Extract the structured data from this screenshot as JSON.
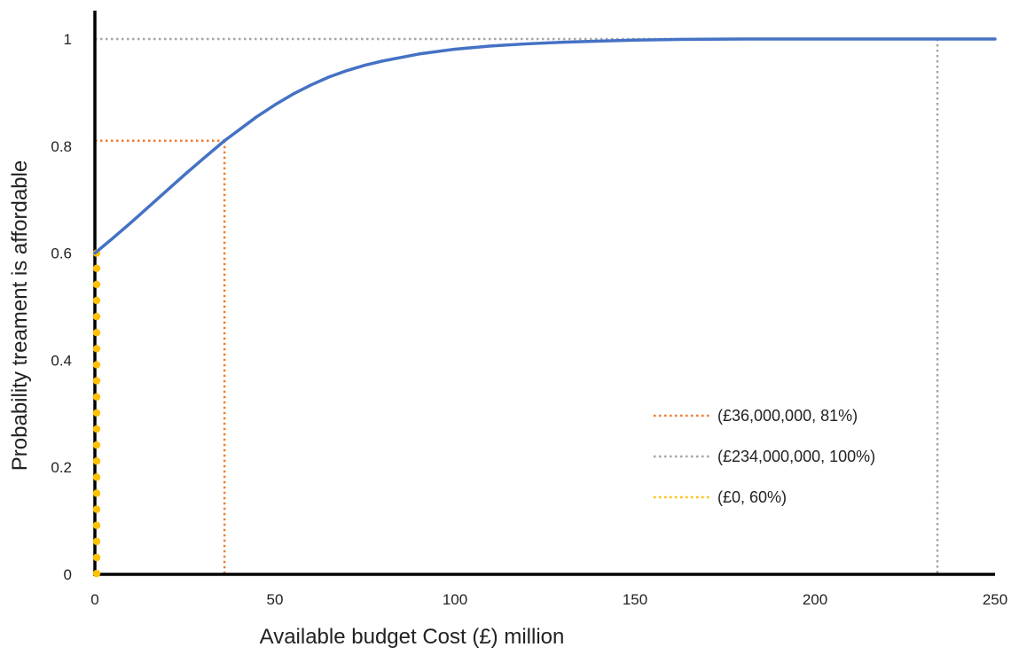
{
  "chart_data": {
    "type": "line",
    "title": "",
    "xlabel": "Available  budget Cost (£) million",
    "ylabel": "Probability treament is affordable",
    "xlim": [
      0,
      250
    ],
    "ylim": [
      0,
      1
    ],
    "x_ticks": [
      0,
      50,
      100,
      150,
      200,
      250
    ],
    "y_ticks": [
      {
        "value": 0,
        "label": "0"
      },
      {
        "value": 0.2,
        "label": "0.2"
      },
      {
        "value": 0.4,
        "label": "0.4"
      },
      {
        "value": 0.6,
        "label": "0.6"
      },
      {
        "value": 0.8,
        "label": "0.8"
      },
      {
        "value": 1,
        "label": "1"
      }
    ],
    "grid": false,
    "legend_position": "right",
    "colors": {
      "curve": "#4472C4",
      "orange": "#ED7D31",
      "gray": "#A5A5A5",
      "yellow": "#FFC000",
      "axis": "#000000"
    },
    "series": [
      {
        "x": [
          0,
          5,
          10,
          15,
          20,
          25,
          30,
          36,
          40,
          45,
          50,
          55,
          60,
          65,
          70,
          75,
          80,
          90,
          100,
          110,
          120,
          130,
          140,
          150,
          160,
          170,
          180,
          200,
          220,
          234,
          250
        ],
        "y": [
          0.6,
          0.628,
          0.657,
          0.687,
          0.717,
          0.747,
          0.776,
          0.81,
          0.83,
          0.855,
          0.877,
          0.897,
          0.914,
          0.929,
          0.941,
          0.951,
          0.959,
          0.972,
          0.981,
          0.987,
          0.991,
          0.994,
          0.996,
          0.998,
          0.999,
          0.9995,
          1.0,
          1.0,
          1.0,
          1.0,
          1.0
        ]
      }
    ],
    "reference_lines": [
      {
        "label": "(£36,000,000, 81%)",
        "color": "#ED7D31",
        "x": 36,
        "y": 0.81,
        "style": "corner"
      },
      {
        "label": "(£234,000,000, 100%)",
        "color": "#A5A5A5",
        "x": 234,
        "y": 1.0,
        "style": "corner"
      },
      {
        "label": "(£0, 60%)",
        "color": "#FFC000",
        "x": 0,
        "y": 0.6,
        "style": "vertical-dots"
      }
    ]
  }
}
